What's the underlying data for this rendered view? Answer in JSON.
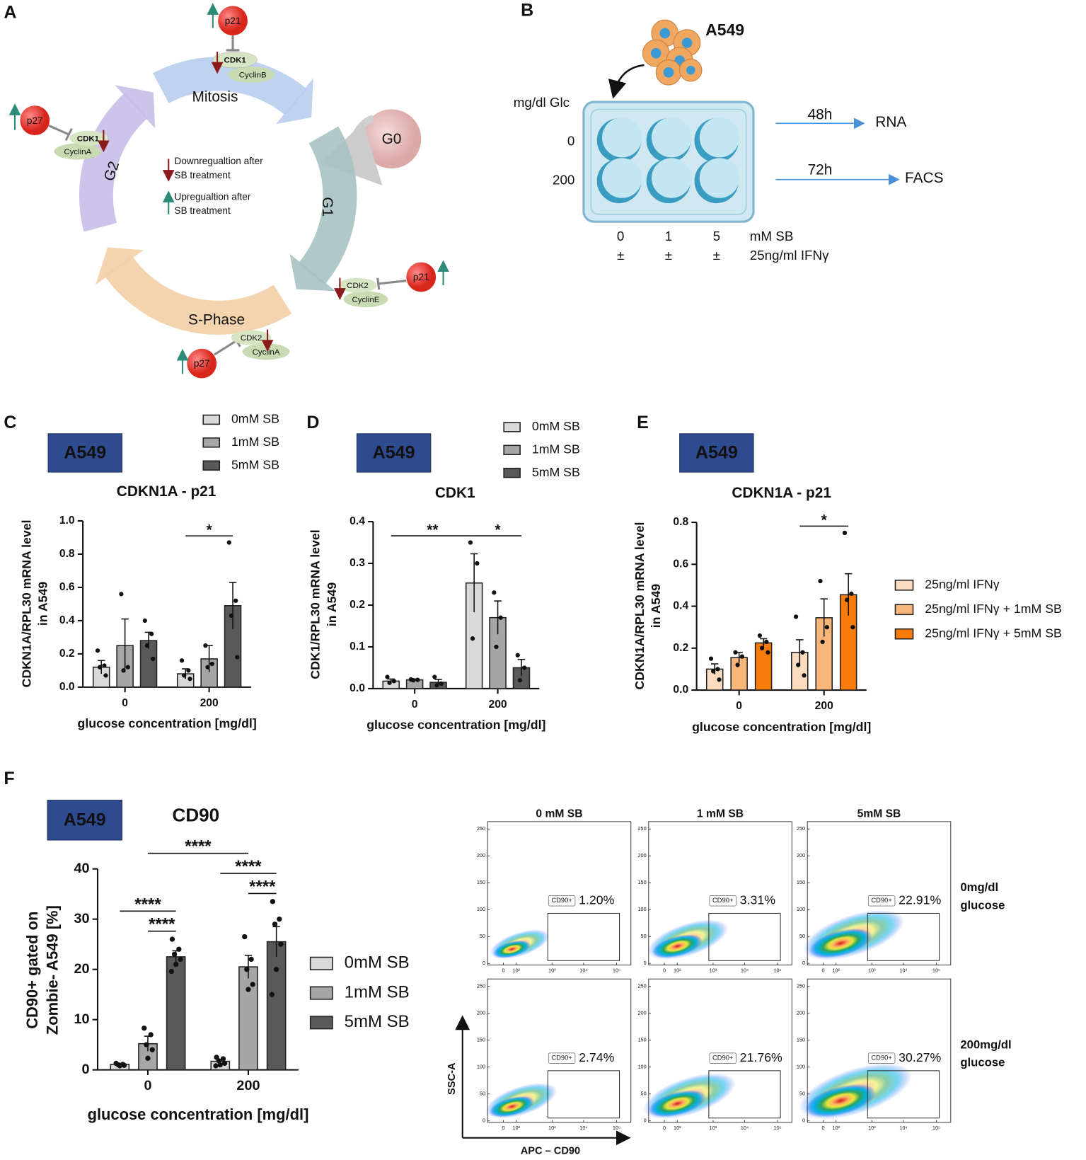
{
  "panel_labels": [
    "A",
    "B",
    "C",
    "D",
    "E",
    "F"
  ],
  "cell_cycle": {
    "phases": [
      "Mitosis",
      "G1",
      "S-Phase",
      "G2"
    ],
    "quiescent": "G0",
    "complexes": [
      {
        "inhibitor": "p21",
        "cdk": "CDK1",
        "cyclin": "CyclinB"
      },
      {
        "inhibitor": "p27",
        "cdk": "CDK1",
        "cyclin": "CyclinA"
      },
      {
        "inhibitor": "p21",
        "cdk": "CDK2",
        "cyclin": "CyclinE"
      },
      {
        "inhibitor": "p27",
        "cdk": "CDK2",
        "cyclin": "CyclinA"
      }
    ],
    "legend": [
      [
        "Downregualtion after",
        "SB treatment"
      ],
      [
        "Upregualtion after",
        "SB treatment"
      ]
    ]
  },
  "setup": {
    "cell_line": "A549",
    "glucose_label": "mg/dl Glc",
    "glucose_levels": [
      "0",
      "200"
    ],
    "readouts": [
      {
        "time": "48h",
        "assay": "RNA"
      },
      {
        "time": "72h",
        "assay": "FACS"
      }
    ],
    "sb_doses": [
      "0",
      "1",
      "5"
    ],
    "sb_unit": "mM SB",
    "ifn_sign": "±",
    "ifn_label": "25ng/ml IFNγ"
  },
  "chart_data": [
    {
      "type": "bar",
      "badge": "A549",
      "title": "CDKN1A - p21",
      "ylabel": [
        "CDKN1A/RPL30 mRNA level",
        "in A549"
      ],
      "xlabel": "glucose concentration [mg/dl]",
      "categories": [
        "0",
        "200"
      ],
      "ylim": [
        0,
        1
      ],
      "yticks": [
        {
          "value": 0,
          "label": "0.0"
        },
        0.2,
        0.4,
        0.6,
        0.8,
        {
          "value": 1,
          "label": "1.0"
        }
      ],
      "series": [
        {
          "name": "0mM SB",
          "color": "#d9d9d9",
          "values": [
            0.12,
            0.08
          ],
          "errors": [
            0.04,
            0.03
          ],
          "points": [
            [
              0.22,
              0.13,
              0.12,
              0.07
            ],
            [
              0.16,
              0.1,
              0.07,
              0.05
            ]
          ]
        },
        {
          "name": "1mM SB",
          "color": "#a6a6a6",
          "values": [
            0.25,
            0.17
          ],
          "errors": [
            0.16,
            0.08
          ],
          "points": [
            [
              0.56,
              0.12,
              0.1
            ],
            [
              0.25,
              0.14,
              0.12
            ]
          ]
        },
        {
          "name": "5mM SB",
          "color": "#595959",
          "values": [
            0.28,
            0.49
          ],
          "errors": [
            0.05,
            0.14
          ],
          "points": [
            [
              0.4,
              0.32,
              0.25,
              0.17
            ],
            [
              0.87,
              0.52,
              0.43,
              0.18
            ]
          ]
        }
      ],
      "annotations": [
        {
          "label": "*",
          "from": [
            1,
            0
          ],
          "to": [
            1,
            2
          ]
        }
      ]
    },
    {
      "type": "bar",
      "badge": "A549",
      "title": "CDK1",
      "ylabel": [
        "CDK1/RPL30 mRNA level",
        "in A549"
      ],
      "xlabel": "glucose concentration [mg/dl]",
      "categories": [
        "0",
        "200"
      ],
      "ylim": [
        0,
        0.4
      ],
      "yticks": [
        {
          "value": 0,
          "label": "0.0"
        },
        0.1,
        0.2,
        0.3,
        0.4
      ],
      "series": [
        {
          "name": "0mM SB",
          "color": "#d9d9d9",
          "values": [
            0.018,
            0.253
          ],
          "errors": [
            0.005,
            0.07
          ],
          "points": [
            [
              0.028,
              0.018,
              0.014
            ],
            [
              0.35,
              0.3,
              0.12
            ]
          ]
        },
        {
          "name": "1mM SB",
          "color": "#a6a6a6",
          "values": [
            0.021,
            0.17
          ],
          "errors": [
            0.002,
            0.04
          ],
          "points": [
            [
              0.022,
              0.021,
              0.02
            ],
            [
              0.23,
              0.17,
              0.1
            ]
          ]
        },
        {
          "name": "5mM SB",
          "color": "#595959",
          "values": [
            0.015,
            0.05
          ],
          "errors": [
            0.007,
            0.02
          ],
          "points": [
            [
              0.028,
              0.012,
              0.008
            ],
            [
              0.08,
              0.05,
              0.02
            ]
          ]
        }
      ],
      "annotations": [
        {
          "label": "**",
          "from": [
            0,
            0
          ],
          "to": [
            1,
            0
          ]
        },
        {
          "label": "*",
          "from": [
            1,
            0
          ],
          "to": [
            1,
            2
          ]
        }
      ]
    },
    {
      "type": "bar",
      "badge": "A549",
      "title": "CDKN1A - p21",
      "ylabel": [
        "CDKN1A/RPL30 mRNA level",
        "in A549"
      ],
      "xlabel": "glucose concentration [mg/dl]",
      "categories": [
        "0",
        "200"
      ],
      "ylim": [
        0,
        0.8
      ],
      "yticks": [
        {
          "value": 0,
          "label": "0.0"
        },
        0.2,
        0.4,
        0.6,
        0.8
      ],
      "series": [
        {
          "name": "25ng/ml IFNγ",
          "color": "#fbdcc0",
          "values": [
            0.1,
            0.18
          ],
          "errors": [
            0.025,
            0.06
          ],
          "points": [
            [
              0.15,
              0.1,
              0.09,
              0.05
            ],
            [
              0.35,
              0.18,
              0.12,
              0.07
            ]
          ]
        },
        {
          "name": "25ng/ml IFNγ + 1mM SB",
          "color": "#f8b77a",
          "values": [
            0.155,
            0.345
          ],
          "errors": [
            0.025,
            0.09
          ],
          "points": [
            [
              0.18,
              0.16,
              0.12
            ],
            [
              0.52,
              0.3,
              0.23
            ]
          ]
        },
        {
          "name": "25ng/ml IFNγ + 5mM SB",
          "color": "#f97b0c",
          "values": [
            0.225,
            0.455
          ],
          "errors": [
            0.02,
            0.1
          ],
          "points": [
            [
              0.26,
              0.23,
              0.2,
              0.18
            ],
            [
              0.75,
              0.46,
              0.43,
              0.3
            ]
          ]
        }
      ],
      "annotations": [
        {
          "label": "*",
          "from": [
            1,
            0
          ],
          "to": [
            1,
            2
          ]
        }
      ]
    },
    {
      "type": "bar",
      "badge": "A549",
      "title": "CD90",
      "ylabel": [
        "CD90+ gated on",
        "Zombie- A549 [%]"
      ],
      "xlabel": "glucose concentration [mg/dl]",
      "categories": [
        "0",
        "200"
      ],
      "ylim": [
        0,
        40
      ],
      "yticks": [
        0,
        10,
        20,
        30,
        40
      ],
      "series": [
        {
          "name": "0mM SB",
          "color": "#d9d9d9",
          "values": [
            1.1,
            1.7
          ],
          "errors": [
            0.2,
            0.3
          ],
          "points": [
            [
              1.3,
              1.1,
              1,
              0.9,
              0.8
            ],
            [
              2.5,
              2.2,
              1.8,
              1.3,
              1,
              0.8
            ]
          ]
        },
        {
          "name": "1mM SB",
          "color": "#a6a6a6",
          "values": [
            5.2,
            20.5
          ],
          "errors": [
            1.5,
            2.3
          ],
          "points": [
            [
              8.3,
              7,
              5,
              4,
              2.3
            ],
            [
              26.5,
              22,
              20,
              17,
              16
            ]
          ]
        },
        {
          "name": "5mM SB",
          "color": "#595959",
          "values": [
            22.5,
            25.5
          ],
          "errors": [
            1.2,
            3
          ],
          "points": [
            [
              26,
              24,
              23,
              22,
              21,
              19.6
            ],
            [
              33.5,
              30,
              29,
              25,
              20,
              15
            ]
          ]
        }
      ],
      "annotations": [
        {
          "label": "****",
          "from": [
            0,
            1
          ],
          "to": [
            0,
            2
          ]
        },
        {
          "label": "****",
          "from": [
            0,
            0
          ],
          "to": [
            0,
            2
          ]
        },
        {
          "label": "****",
          "from": [
            1,
            1
          ],
          "to": [
            1,
            2
          ]
        },
        {
          "label": "****",
          "from": [
            1,
            0
          ],
          "to": [
            1,
            2
          ]
        },
        {
          "label": "****",
          "from": [
            0,
            1
          ],
          "to": [
            1,
            1
          ]
        }
      ]
    }
  ],
  "flow": {
    "columns": [
      "0 mM SB",
      "1 mM SB",
      "5mM SB"
    ],
    "rows": [
      [
        "0mg/dl",
        "glucose"
      ],
      [
        "200mg/dl",
        "glucose"
      ]
    ],
    "gate": "CD90+",
    "percentages": [
      [
        "1.20%",
        "3.31%",
        "22.91%"
      ],
      [
        "2.74%",
        "21.76%",
        "30.27%"
      ]
    ],
    "yticks": [
      "0",
      "50",
      "100",
      "150",
      "200",
      "250"
    ],
    "xticks": [
      "0",
      "10²",
      "10³",
      "10⁴",
      "10⁵"
    ],
    "ylabel": "SSC-A",
    "xlabel": "APC – CD90"
  }
}
